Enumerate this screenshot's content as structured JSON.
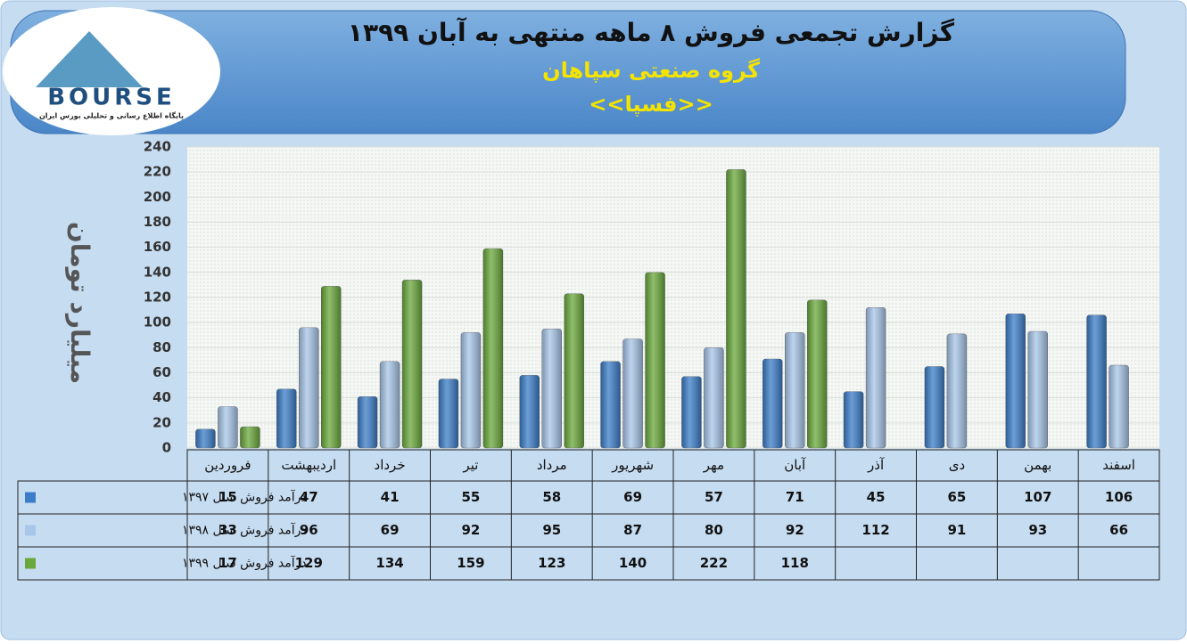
{
  "logo": {
    "name": "BOURSE",
    "tagline": "پایگاه اطلاع رسانی و تحلیلی بورس ایران"
  },
  "chart_data": {
    "type": "bar",
    "title": "گزارش تجمعی فروش ۸ ماهه منتهی به آبان ۱۳۹۹",
    "subtitle": "گروه صنعتی سپاهان",
    "symbol": "<<فسپا>>",
    "y_label": "میلیارد تومان",
    "categories": [
      "فروردین",
      "اردیبهشت",
      "خرداد",
      "تیر",
      "مرداد",
      "شهریور",
      "مهر",
      "آبان",
      "آذر",
      "دی",
      "بهمن",
      "اسفند"
    ],
    "series": [
      {
        "name": "درآمد فروش سال ۱۳۹۷",
        "color": "#3b7dc8",
        "values": [
          15,
          47,
          41,
          55,
          58,
          69,
          57,
          71,
          45,
          65,
          107,
          106
        ]
      },
      {
        "name": "درآمد فروش سال ۱۳۹۸",
        "color": "#a7c6e8",
        "values": [
          33,
          96,
          69,
          92,
          95,
          87,
          80,
          92,
          112,
          91,
          93,
          66
        ]
      },
      {
        "name": "درآمد فروش سال ۱۳۹۹",
        "color": "#69a83a",
        "values": [
          17,
          129,
          134,
          159,
          123,
          140,
          222,
          118,
          null,
          null,
          null,
          null
        ]
      }
    ],
    "ylim": [
      0,
      240
    ],
    "yticks": [
      0,
      20,
      40,
      60,
      80,
      100,
      120,
      140,
      160,
      180,
      200,
      220,
      240
    ],
    "grid": true
  }
}
